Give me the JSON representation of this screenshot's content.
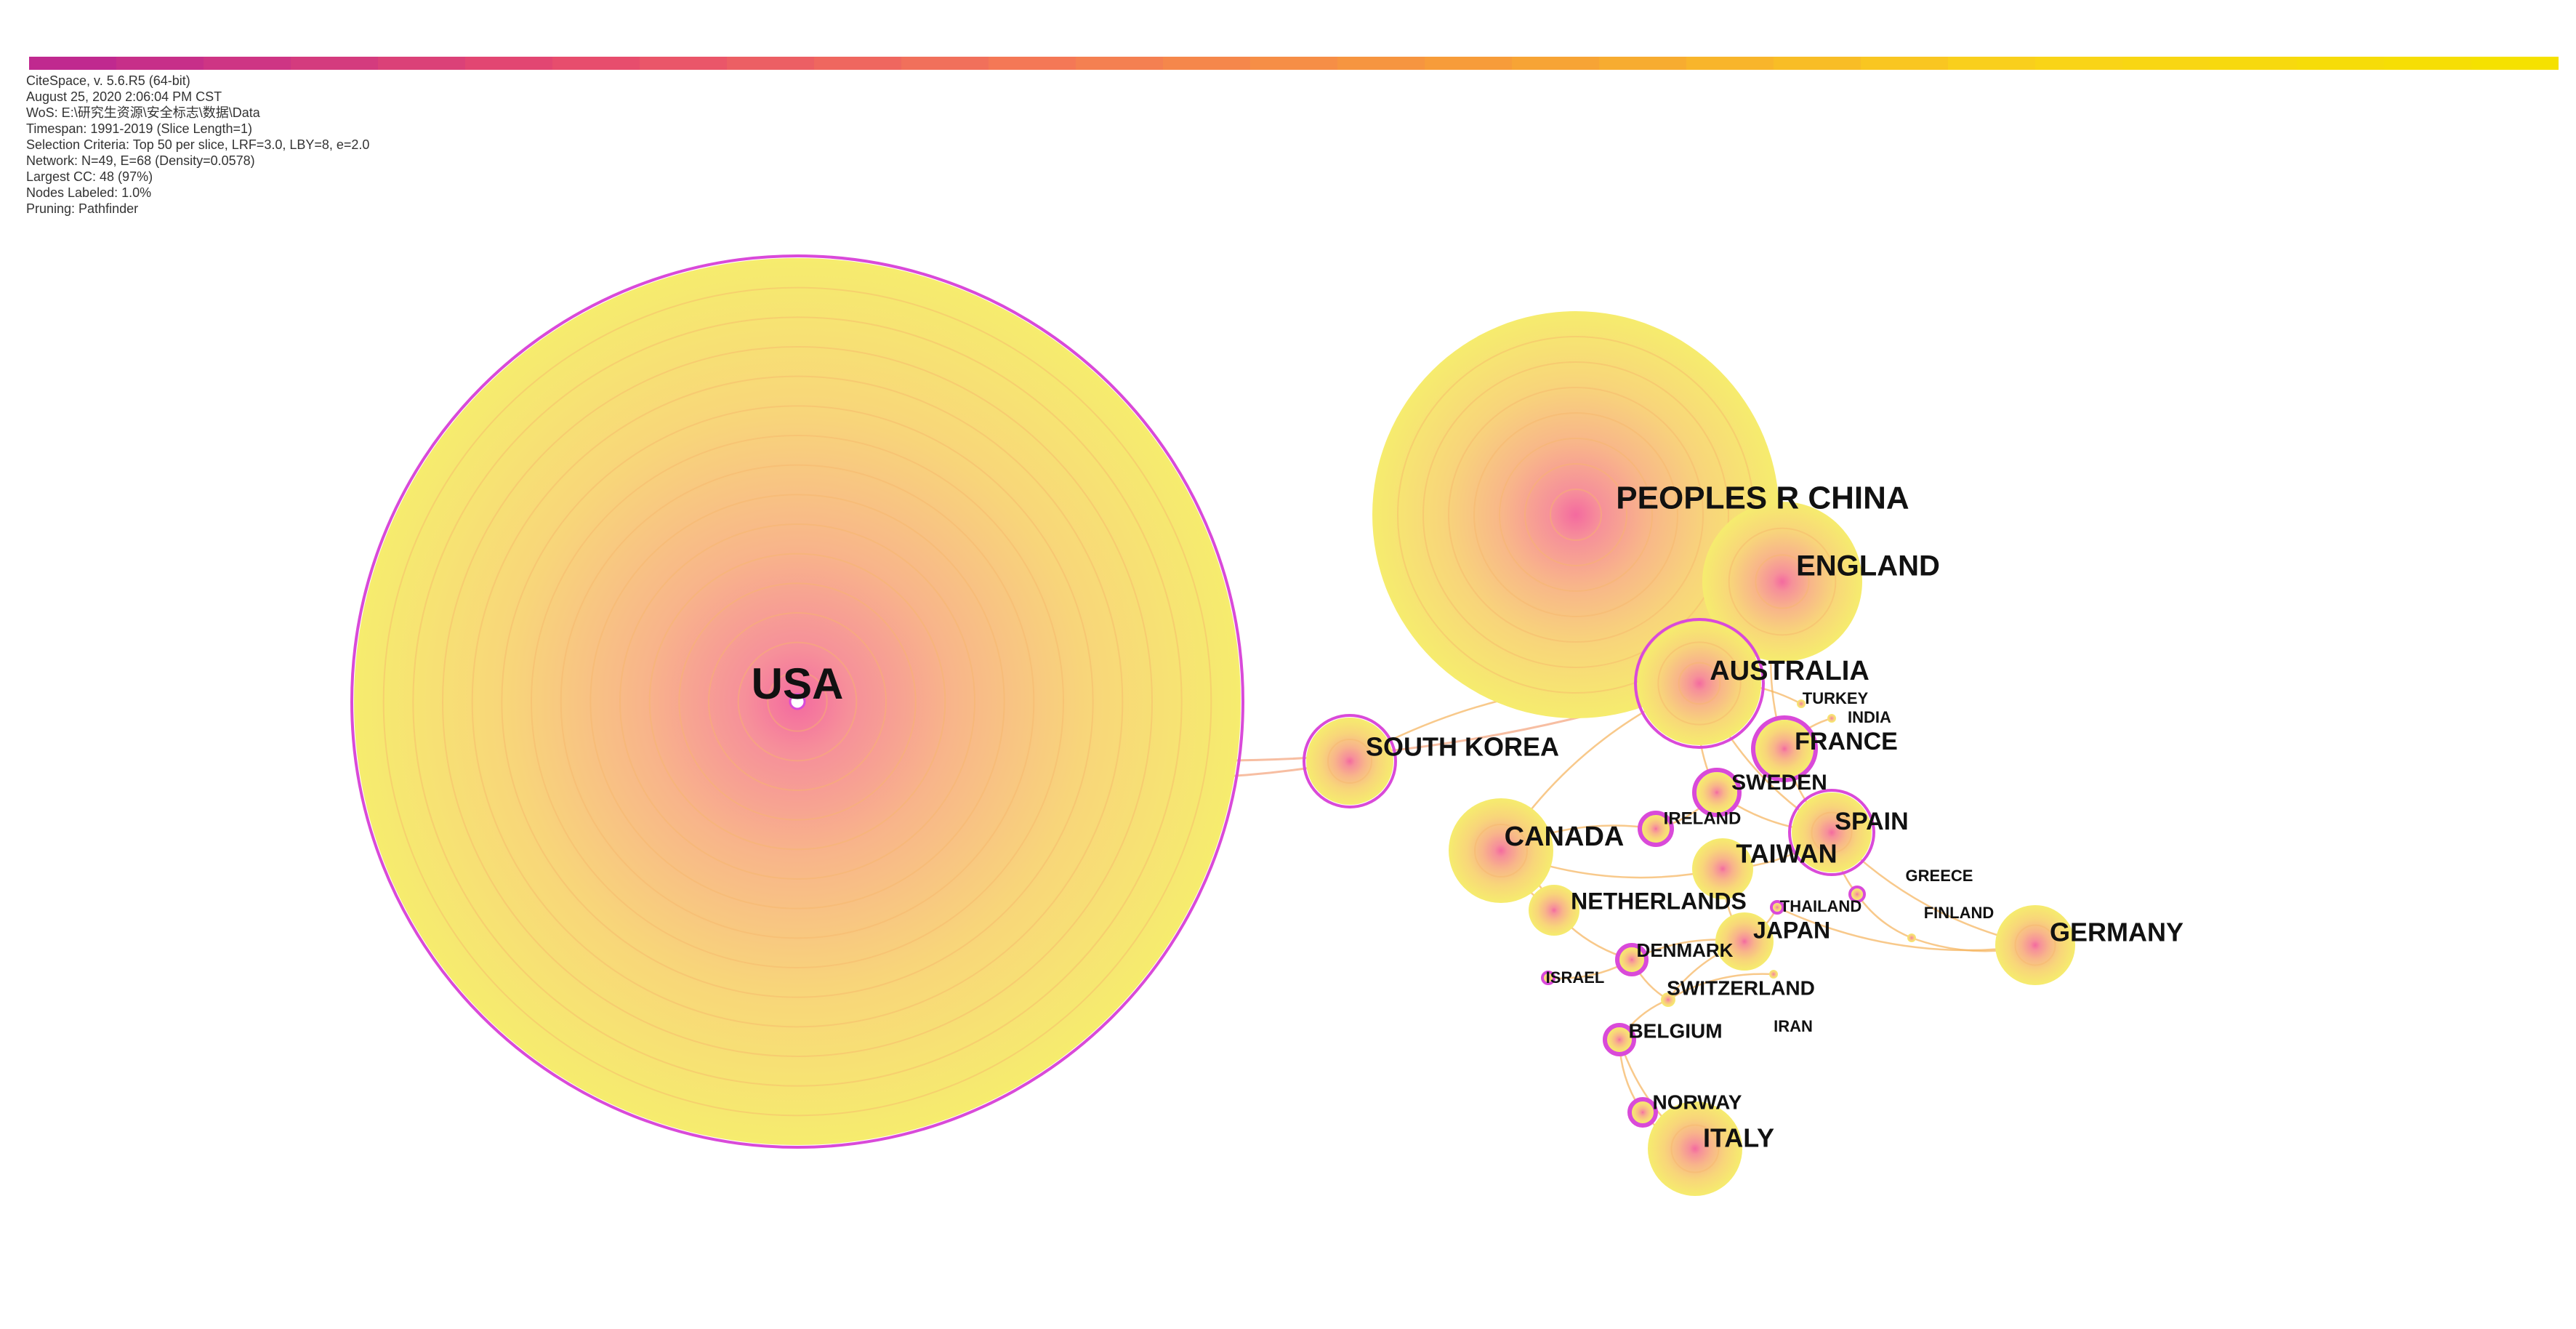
{
  "metadata": {
    "lines": [
      "CiteSpace, v. 5.6.R5 (64-bit)",
      "August 25, 2020 2:06:04 PM CST",
      "WoS: E:\\研究生资源\\安全标志\\数据\\Data",
      "Timespan: 1991-2019 (Slice Length=1)",
      "Selection Criteria: Top 50 per slice, LRF=3.0, LBY=8, e=2.0",
      "Network: N=49, E=68 (Density=0.0578)",
      "Largest CC: 48 (97%)",
      "Nodes Labeled: 1.0%",
      "Pruning: Pathfinder"
    ]
  },
  "colors": {
    "node_outer": "#f6ec6e",
    "node_inner": "#f47a9a",
    "centrality_ring": "#d94ad9",
    "link": "#f5b25a",
    "timeline": [
      "#c0298f",
      "#e64a6f",
      "#f47a55",
      "#f7a236",
      "#f9d21a",
      "#f5e100"
    ]
  },
  "nodes": [
    {
      "id": "usa",
      "label": "USA",
      "size": 1.0,
      "ring": true
    },
    {
      "id": "china",
      "label": "PEOPLES R CHINA",
      "size": 0.46,
      "ring": false
    },
    {
      "id": "england",
      "label": "ENGLAND",
      "size": 0.18,
      "ring": false
    },
    {
      "id": "australia",
      "label": "AUSTRALIA",
      "size": 0.14,
      "ring": true
    },
    {
      "id": "south-korea",
      "label": "SOUTH KOREA",
      "size": 0.1,
      "ring": true
    },
    {
      "id": "france",
      "label": "FRANCE",
      "size": 0.07,
      "ring": true
    },
    {
      "id": "turkey",
      "label": "TURKEY",
      "size": 0.01,
      "ring": false
    },
    {
      "id": "india",
      "label": "INDIA",
      "size": 0.01,
      "ring": false
    },
    {
      "id": "sweden",
      "label": "SWEDEN",
      "size": 0.05,
      "ring": true
    },
    {
      "id": "ireland",
      "label": "IRELAND",
      "size": 0.03,
      "ring": true
    },
    {
      "id": "spain",
      "label": "SPAIN",
      "size": 0.09,
      "ring": true
    },
    {
      "id": "canada",
      "label": "CANADA",
      "size": 0.12,
      "ring": false
    },
    {
      "id": "taiwan",
      "label": "TAIWAN",
      "size": 0.06,
      "ring": false
    },
    {
      "id": "greece",
      "label": "GREECE",
      "size": 0.01,
      "ring": true
    },
    {
      "id": "netherlands",
      "label": "NETHERLANDS",
      "size": 0.06,
      "ring": false
    },
    {
      "id": "thailand",
      "label": "THAILAND",
      "size": 0.01,
      "ring": true
    },
    {
      "id": "finland",
      "label": "FINLAND",
      "size": 0.01,
      "ring": false
    },
    {
      "id": "germany",
      "label": "GERMANY",
      "size": 0.1,
      "ring": false
    },
    {
      "id": "japan",
      "label": "JAPAN",
      "size": 0.06,
      "ring": false
    },
    {
      "id": "denmark",
      "label": "DENMARK",
      "size": 0.03,
      "ring": true
    },
    {
      "id": "israel",
      "label": "ISRAEL",
      "size": 0.01,
      "ring": true
    },
    {
      "id": "switzerland",
      "label": "SWITZERLAND",
      "size": 0.01,
      "ring": false
    },
    {
      "id": "iran",
      "label": "IRAN",
      "size": 0.01,
      "ring": false
    },
    {
      "id": "belgium",
      "label": "BELGIUM",
      "size": 0.03,
      "ring": true
    },
    {
      "id": "norway",
      "label": "NORWAY",
      "size": 0.03,
      "ring": true
    },
    {
      "id": "italy",
      "label": "ITALY",
      "size": 0.13,
      "ring": false
    }
  ],
  "links": [
    [
      "usa",
      "south-korea"
    ],
    [
      "usa",
      "australia"
    ],
    [
      "china",
      "australia"
    ],
    [
      "china",
      "england"
    ],
    [
      "australia",
      "south-korea"
    ],
    [
      "australia",
      "canada"
    ],
    [
      "australia",
      "sweden"
    ],
    [
      "australia",
      "spain"
    ],
    [
      "england",
      "france"
    ],
    [
      "france",
      "spain"
    ],
    [
      "sweden",
      "spain"
    ],
    [
      "ireland",
      "canada"
    ],
    [
      "canada",
      "taiwan"
    ],
    [
      "taiwan",
      "spain"
    ],
    [
      "taiwan",
      "japan"
    ],
    [
      "spain",
      "greece"
    ],
    [
      "spain",
      "germany"
    ],
    [
      "greece",
      "finland"
    ],
    [
      "finland",
      "germany"
    ],
    [
      "thailand",
      "germany"
    ],
    [
      "netherlands",
      "denmark"
    ],
    [
      "netherlands",
      "canada"
    ],
    [
      "japan",
      "denmark"
    ],
    [
      "denmark",
      "switzerland"
    ],
    [
      "switzerland",
      "belgium"
    ],
    [
      "belgium",
      "norway"
    ],
    [
      "norway",
      "italy"
    ],
    [
      "japan",
      "switzerland"
    ],
    [
      "iran",
      "switzerland"
    ],
    [
      "israel",
      "denmark"
    ],
    [
      "japan",
      "thailand"
    ],
    [
      "canada",
      "netherlands"
    ],
    [
      "belgium",
      "italy"
    ],
    [
      "ireland",
      "sweden"
    ],
    [
      "turkey",
      "australia"
    ],
    [
      "india",
      "france"
    ]
  ]
}
